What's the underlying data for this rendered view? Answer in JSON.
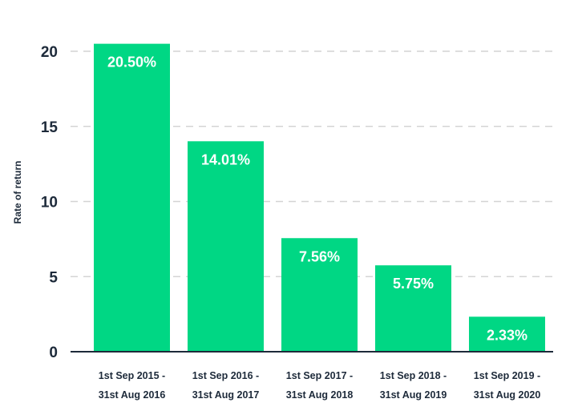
{
  "chart_data": {
    "type": "bar",
    "ylabel": "Rate of return",
    "xlabel": "",
    "ylim": [
      0,
      22
    ],
    "yticks": [
      0,
      5,
      10,
      15,
      20
    ],
    "grid": true,
    "bar_color": "#00d784",
    "categories": [
      [
        "1st Sep 2015 -",
        "31st Aug 2016"
      ],
      [
        "1st Sep 2016 -",
        "31st Aug 2017"
      ],
      [
        "1st Sep 2017 -",
        "31st Aug 2018"
      ],
      [
        "1st Sep 2018 -",
        "31st Aug 2019"
      ],
      [
        "1st Sep 2019 -",
        "31st Aug 2020"
      ]
    ],
    "values": [
      20.5,
      14.01,
      7.56,
      5.75,
      2.33
    ],
    "data_labels": [
      "20.50%",
      "14.01%",
      "7.56%",
      "5.75%",
      "2.33%"
    ]
  }
}
